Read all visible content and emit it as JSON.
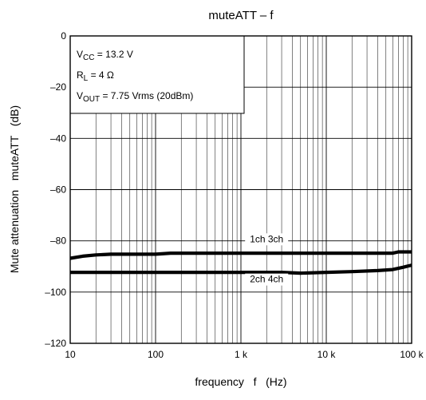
{
  "chart_data": {
    "type": "line",
    "title": "muteATT – f",
    "xlabel": "frequency   f   (Hz)",
    "ylabel": "Mute attenuation   muteATT   (dB)",
    "x_scale": "log",
    "xlim": [
      10,
      100000
    ],
    "ylim": [
      -120,
      0
    ],
    "x_ticks": [
      10,
      100,
      1000,
      10000,
      100000
    ],
    "x_tick_labels": [
      "10",
      "100",
      "1 k",
      "10 k",
      "100 k"
    ],
    "y_ticks": [
      0,
      -20,
      -40,
      -60,
      -80,
      -100,
      -120
    ],
    "y_tick_labels": [
      "0",
      "–20",
      "–40",
      "–60",
      "–80",
      "–100",
      "–120"
    ],
    "grid": true,
    "conditions": [
      {
        "key": "vcc",
        "main": "V",
        "sub": "CC",
        "rest": " = 13.2 V"
      },
      {
        "key": "rl",
        "main": "R",
        "sub": "L",
        "rest": " = 4 Ω"
      },
      {
        "key": "vout",
        "main": "V",
        "sub": "OUT",
        "rest": " = 7.75 Vrms (20dBm)"
      }
    ],
    "series": [
      {
        "name": "1ch 3ch",
        "x": [
          10,
          14,
          20,
          30,
          50,
          100,
          150,
          300,
          1000,
          3000,
          10000,
          30000,
          60000,
          70000,
          100000
        ],
        "y": [
          -86.8,
          -86.0,
          -85.5,
          -85.2,
          -85.2,
          -85.2,
          -84.8,
          -84.8,
          -84.8,
          -84.8,
          -84.8,
          -84.8,
          -84.8,
          -84.3,
          -84.3
        ]
      },
      {
        "name": "2ch 4ch",
        "x": [
          10,
          100,
          1000,
          3000,
          5000,
          10000,
          20000,
          40000,
          60000,
          80000,
          100000
        ],
        "y": [
          -92.3,
          -92.3,
          -92.3,
          -92.3,
          -92.6,
          -92.3,
          -92.0,
          -91.6,
          -91.2,
          -90.3,
          -89.5
        ]
      }
    ],
    "series_labels": [
      {
        "series": "1ch 3ch",
        "x": 2000,
        "y": -80.5
      },
      {
        "series": "2ch 4ch",
        "x": 2000,
        "y": -96.2
      }
    ]
  }
}
